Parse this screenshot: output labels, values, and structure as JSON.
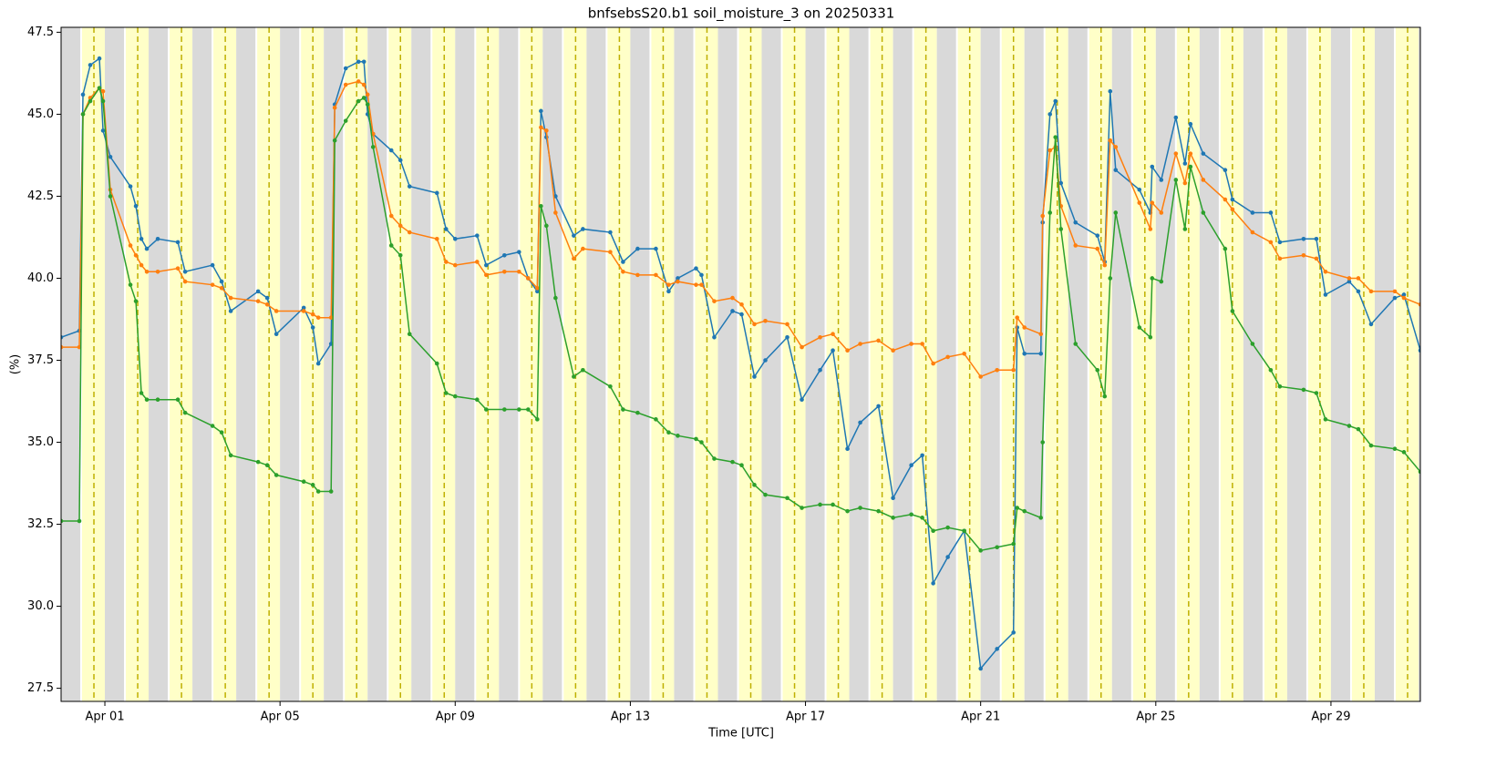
{
  "chart_data": {
    "type": "line",
    "title": "bnfsebsS20.b1 soil_moisture_3 on 20250331",
    "xlabel": "Time [UTC]",
    "ylabel": "(%)",
    "xlim": [
      "2025-03-31T00:00",
      "2025-05-01T01:00"
    ],
    "xticks": [
      {
        "value": "2025-04-01T00:00",
        "label": "Apr 01"
      },
      {
        "value": "2025-04-05T00:00",
        "label": "Apr 05"
      },
      {
        "value": "2025-04-09T00:00",
        "label": "Apr 09"
      },
      {
        "value": "2025-04-13T00:00",
        "label": "Apr 13"
      },
      {
        "value": "2025-04-17T00:00",
        "label": "Apr 17"
      },
      {
        "value": "2025-04-21T00:00",
        "label": "Apr 21"
      },
      {
        "value": "2025-04-25T00:00",
        "label": "Apr 25"
      },
      {
        "value": "2025-04-29T00:00",
        "label": "Apr 29"
      }
    ],
    "ylim": [
      27.1,
      47.65
    ],
    "yticks": [
      27.5,
      {
        "value": 30,
        "label": "30.0"
      },
      32.5,
      {
        "value": 35,
        "label": "35.0"
      },
      37.5,
      {
        "value": 40,
        "label": "40.0"
      },
      42.5,
      {
        "value": 45,
        "label": "45.0"
      },
      47.5
    ],
    "shading": {
      "night_color": "#d9d9d9",
      "day_color": "#ffffc8",
      "noon_line_color": "#bfb000",
      "night_hours": [
        0,
        10.5
      ],
      "day_hours": [
        11.5,
        24
      ],
      "noon_hour": 18
    },
    "x": [
      "2025-03-31T00:00",
      "2025-03-31T10:00",
      "2025-03-31T12:00",
      "2025-03-31T16:00",
      "2025-03-31T21:00",
      "2025-03-31T23:00",
      "2025-04-01T03:00",
      "2025-04-01T14:00",
      "2025-04-01T17:00",
      "2025-04-01T20:00",
      "2025-04-01T23:00",
      "2025-04-02T05:00",
      "2025-04-02T16:00",
      "2025-04-02T20:00",
      "2025-04-03T11:00",
      "2025-04-03T16:00",
      "2025-04-03T21:00",
      "2025-04-04T12:00",
      "2025-04-04T17:00",
      "2025-04-04T22:00",
      "2025-04-05T13:00",
      "2025-04-05T18:00",
      "2025-04-05T21:00",
      "2025-04-06T04:00",
      "2025-04-06T06:00",
      "2025-04-06T12:00",
      "2025-04-06T19:00",
      "2025-04-06T22:00",
      "2025-04-07T00:00",
      "2025-04-07T03:00",
      "2025-04-07T13:00",
      "2025-04-07T18:00",
      "2025-04-07T23:00",
      "2025-04-08T14:00",
      "2025-04-08T19:00",
      "2025-04-09T00:00",
      "2025-04-09T12:00",
      "2025-04-09T17:00",
      "2025-04-10T03:00",
      "2025-04-10T11:00",
      "2025-04-10T16:00",
      "2025-04-10T21:00",
      "2025-04-10T23:00",
      "2025-04-11T02:00",
      "2025-04-11T07:00",
      "2025-04-11T17:00",
      "2025-04-11T22:00",
      "2025-04-12T13:00",
      "2025-04-12T20:00",
      "2025-04-13T04:00",
      "2025-04-13T14:00",
      "2025-04-13T21:00",
      "2025-04-14T02:00",
      "2025-04-14T12:00",
      "2025-04-14T15:00",
      "2025-04-14T22:00",
      "2025-04-15T08:00",
      "2025-04-15T13:00",
      "2025-04-15T20:00",
      "2025-04-16T02:00",
      "2025-04-16T14:00",
      "2025-04-16T22:00",
      "2025-04-17T08:00",
      "2025-04-17T15:00",
      "2025-04-17T23:00",
      "2025-04-18T06:00",
      "2025-04-18T16:00",
      "2025-04-19T00:00",
      "2025-04-19T10:00",
      "2025-04-19T16:00",
      "2025-04-19T22:00",
      "2025-04-20T06:00",
      "2025-04-20T15:00",
      "2025-04-21T00:00",
      "2025-04-21T09:00",
      "2025-04-21T18:00",
      "2025-04-21T20:00",
      "2025-04-22T00:00",
      "2025-04-22T09:00",
      "2025-04-22T10:00",
      "2025-04-22T14:00",
      "2025-04-22T17:00",
      "2025-04-22T20:00",
      "2025-04-23T04:00",
      "2025-04-23T16:00",
      "2025-04-23T20:00",
      "2025-04-23T23:00",
      "2025-04-24T02:00",
      "2025-04-24T15:00",
      "2025-04-24T21:00",
      "2025-04-24T22:00",
      "2025-04-25T03:00",
      "2025-04-25T11:00",
      "2025-04-25T16:00",
      "2025-04-25T19:00",
      "2025-04-26T02:00",
      "2025-04-26T14:00",
      "2025-04-26T18:00",
      "2025-04-27T05:00",
      "2025-04-27T15:00",
      "2025-04-27T20:00",
      "2025-04-28T09:00",
      "2025-04-28T16:00",
      "2025-04-28T21:00",
      "2025-04-29T10:00",
      "2025-04-29T15:00",
      "2025-04-29T22:00",
      "2025-04-30T11:00",
      "2025-04-30T16:00",
      "2025-05-01T01:00"
    ],
    "series": [
      {
        "color": "#1f77b4",
        "values": [
          38.2,
          38.4,
          45.6,
          46.5,
          46.7,
          44.5,
          43.7,
          42.8,
          42.2,
          41.2,
          40.9,
          41.2,
          41.1,
          40.2,
          40.4,
          39.9,
          39.0,
          39.6,
          39.4,
          38.3,
          39.1,
          38.5,
          37.4,
          38.0,
          45.3,
          46.4,
          46.6,
          46.6,
          45.0,
          44.4,
          43.9,
          43.6,
          42.8,
          42.6,
          41.5,
          41.2,
          41.3,
          40.4,
          40.7,
          40.8,
          40.0,
          39.6,
          45.1,
          44.3,
          42.5,
          41.3,
          41.5,
          41.4,
          40.5,
          40.9,
          40.9,
          39.6,
          40.0,
          40.3,
          40.1,
          38.2,
          39.0,
          38.9,
          37.0,
          37.5,
          38.2,
          36.3,
          37.2,
          37.8,
          34.8,
          35.6,
          36.1,
          33.3,
          34.3,
          34.6,
          30.7,
          31.5,
          32.3,
          28.1,
          28.7,
          29.2,
          38.5,
          37.7,
          37.7,
          41.7,
          45.0,
          45.4,
          42.9,
          41.7,
          41.3,
          40.5,
          45.7,
          43.3,
          42.7,
          42.0,
          43.4,
          43.0,
          44.9,
          43.5,
          44.7,
          43.8,
          43.3,
          42.4,
          42.0,
          42.0,
          41.1,
          41.2,
          41.2,
          39.5,
          39.9,
          39.6,
          38.6,
          39.4,
          39.5,
          37.8
        ]
      },
      {
        "color": "#ff7f0e",
        "values": [
          37.9,
          37.9,
          45.0,
          45.5,
          45.8,
          45.7,
          42.7,
          41.0,
          40.7,
          40.4,
          40.2,
          40.2,
          40.3,
          39.9,
          39.8,
          39.7,
          39.4,
          39.3,
          39.2,
          39.0,
          39.0,
          38.9,
          38.8,
          38.8,
          45.2,
          45.9,
          46.0,
          45.9,
          45.6,
          44.4,
          41.9,
          41.6,
          41.4,
          41.2,
          40.5,
          40.4,
          40.5,
          40.1,
          40.2,
          40.2,
          40.0,
          39.7,
          44.6,
          44.5,
          42.0,
          40.6,
          40.9,
          40.8,
          40.2,
          40.1,
          40.1,
          39.8,
          39.9,
          39.8,
          39.8,
          39.3,
          39.4,
          39.2,
          38.6,
          38.7,
          38.6,
          37.9,
          38.2,
          38.3,
          37.8,
          38.0,
          38.1,
          37.8,
          38.0,
          38.0,
          37.4,
          37.6,
          37.7,
          37.0,
          37.2,
          37.2,
          38.8,
          38.5,
          38.3,
          41.9,
          43.9,
          44.0,
          42.2,
          41.0,
          40.9,
          40.4,
          44.2,
          44.0,
          42.3,
          41.5,
          42.3,
          42.0,
          43.8,
          42.9,
          43.8,
          43.0,
          42.4,
          42.1,
          41.4,
          41.1,
          40.6,
          40.7,
          40.6,
          40.2,
          40.0,
          40.0,
          39.6,
          39.6,
          39.4,
          39.2
        ]
      },
      {
        "color": "#2ca02c",
        "values": [
          32.6,
          32.6,
          45.0,
          45.4,
          45.8,
          45.4,
          42.5,
          39.8,
          39.3,
          36.5,
          36.3,
          36.3,
          36.3,
          35.9,
          35.5,
          35.3,
          34.6,
          34.4,
          34.3,
          34.0,
          33.8,
          33.7,
          33.5,
          33.5,
          44.2,
          44.8,
          45.4,
          45.5,
          45.3,
          44.0,
          41.0,
          40.7,
          38.3,
          37.4,
          36.5,
          36.4,
          36.3,
          36.0,
          36.0,
          36.0,
          36.0,
          35.7,
          42.2,
          41.6,
          39.4,
          37.0,
          37.2,
          36.7,
          36.0,
          35.9,
          35.7,
          35.3,
          35.2,
          35.1,
          35.0,
          34.5,
          34.4,
          34.3,
          33.7,
          33.4,
          33.3,
          33.0,
          33.1,
          33.1,
          32.9,
          33.0,
          32.9,
          32.7,
          32.8,
          32.7,
          32.3,
          32.4,
          32.3,
          31.7,
          31.8,
          31.9,
          33.0,
          32.9,
          32.7,
          35.0,
          42.0,
          44.3,
          41.5,
          38.0,
          37.2,
          36.4,
          40.0,
          42.0,
          38.5,
          38.2,
          40.0,
          39.9,
          43.0,
          41.5,
          43.4,
          42.0,
          40.9,
          39.0,
          38.0,
          37.2,
          36.7,
          36.6,
          36.5,
          35.7,
          35.5,
          35.4,
          34.9,
          34.8,
          34.7,
          34.1
        ]
      }
    ]
  }
}
